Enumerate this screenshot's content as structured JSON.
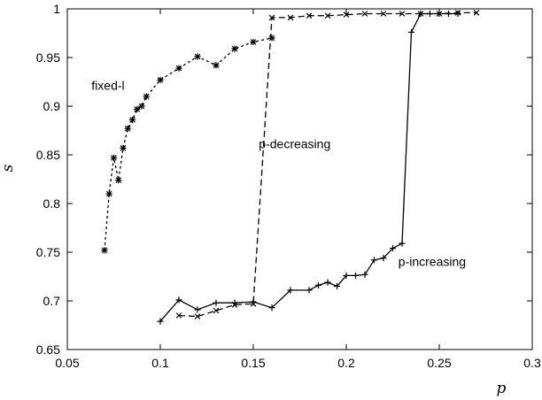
{
  "chart_data": {
    "type": "line",
    "title": "",
    "xlabel": "p",
    "ylabel": "s",
    "xlim": [
      0.05,
      0.3
    ],
    "ylim": [
      0.65,
      1.0
    ],
    "xticks": [
      0.05,
      0.1,
      0.15,
      0.2,
      0.25,
      0.3
    ],
    "yticks": [
      0.65,
      0.7,
      0.75,
      0.8,
      0.85,
      0.9,
      0.95,
      1
    ],
    "xtick_labels": [
      "0.05",
      "0.1",
      "0.15",
      "0.2",
      "0.25",
      "0.3"
    ],
    "ytick_labels": [
      "0.65",
      "0.7",
      "0.75",
      "0.8",
      "0.85",
      "0.9",
      "0.95",
      "1"
    ],
    "grid": false,
    "legend": "none",
    "series": [
      {
        "name": "fixed-l",
        "line_style": "dotted",
        "marker": "star",
        "x": [
          0.07,
          0.0725,
          0.075,
          0.0775,
          0.08,
          0.0825,
          0.085,
          0.0875,
          0.09,
          0.0925,
          0.1,
          0.11,
          0.12,
          0.13,
          0.14,
          0.15,
          0.16
        ],
        "y": [
          0.752,
          0.81,
          0.847,
          0.824,
          0.857,
          0.877,
          0.886,
          0.897,
          0.9,
          0.91,
          0.927,
          0.939,
          0.951,
          0.942,
          0.959,
          0.966,
          0.97
        ]
      },
      {
        "name": "p-decreasing",
        "line_style": "dashed",
        "marker": "x",
        "x": [
          0.11,
          0.12,
          0.13,
          0.14,
          0.15,
          0.16,
          0.17,
          0.18,
          0.19,
          0.2,
          0.21,
          0.22,
          0.23,
          0.24,
          0.25,
          0.26,
          0.27
        ],
        "y": [
          0.685,
          0.684,
          0.69,
          0.696,
          0.697,
          0.991,
          0.991,
          0.993,
          0.993,
          0.994,
          0.995,
          0.995,
          0.995,
          0.995,
          0.995,
          0.996,
          0.996
        ]
      },
      {
        "name": "p-increasing",
        "line_style": "solid",
        "marker": "plus",
        "x": [
          0.1,
          0.11,
          0.12,
          0.13,
          0.14,
          0.15,
          0.16,
          0.17,
          0.18,
          0.185,
          0.19,
          0.195,
          0.2,
          0.205,
          0.21,
          0.215,
          0.22,
          0.225,
          0.23,
          0.235,
          0.24,
          0.245,
          0.25,
          0.255,
          0.26
        ],
        "y": [
          0.679,
          0.701,
          0.691,
          0.698,
          0.698,
          0.699,
          0.693,
          0.711,
          0.711,
          0.716,
          0.719,
          0.715,
          0.726,
          0.726,
          0.727,
          0.742,
          0.744,
          0.754,
          0.759,
          0.976,
          0.995,
          0.995,
          0.995,
          0.995,
          0.995
        ]
      }
    ],
    "annotations": [
      {
        "text": "fixed-l",
        "x": 0.063,
        "y": 0.917
      },
      {
        "text": "p-decreasing",
        "x": 0.153,
        "y": 0.857
      },
      {
        "text": "p-increasing",
        "x": 0.228,
        "y": 0.736
      }
    ]
  }
}
